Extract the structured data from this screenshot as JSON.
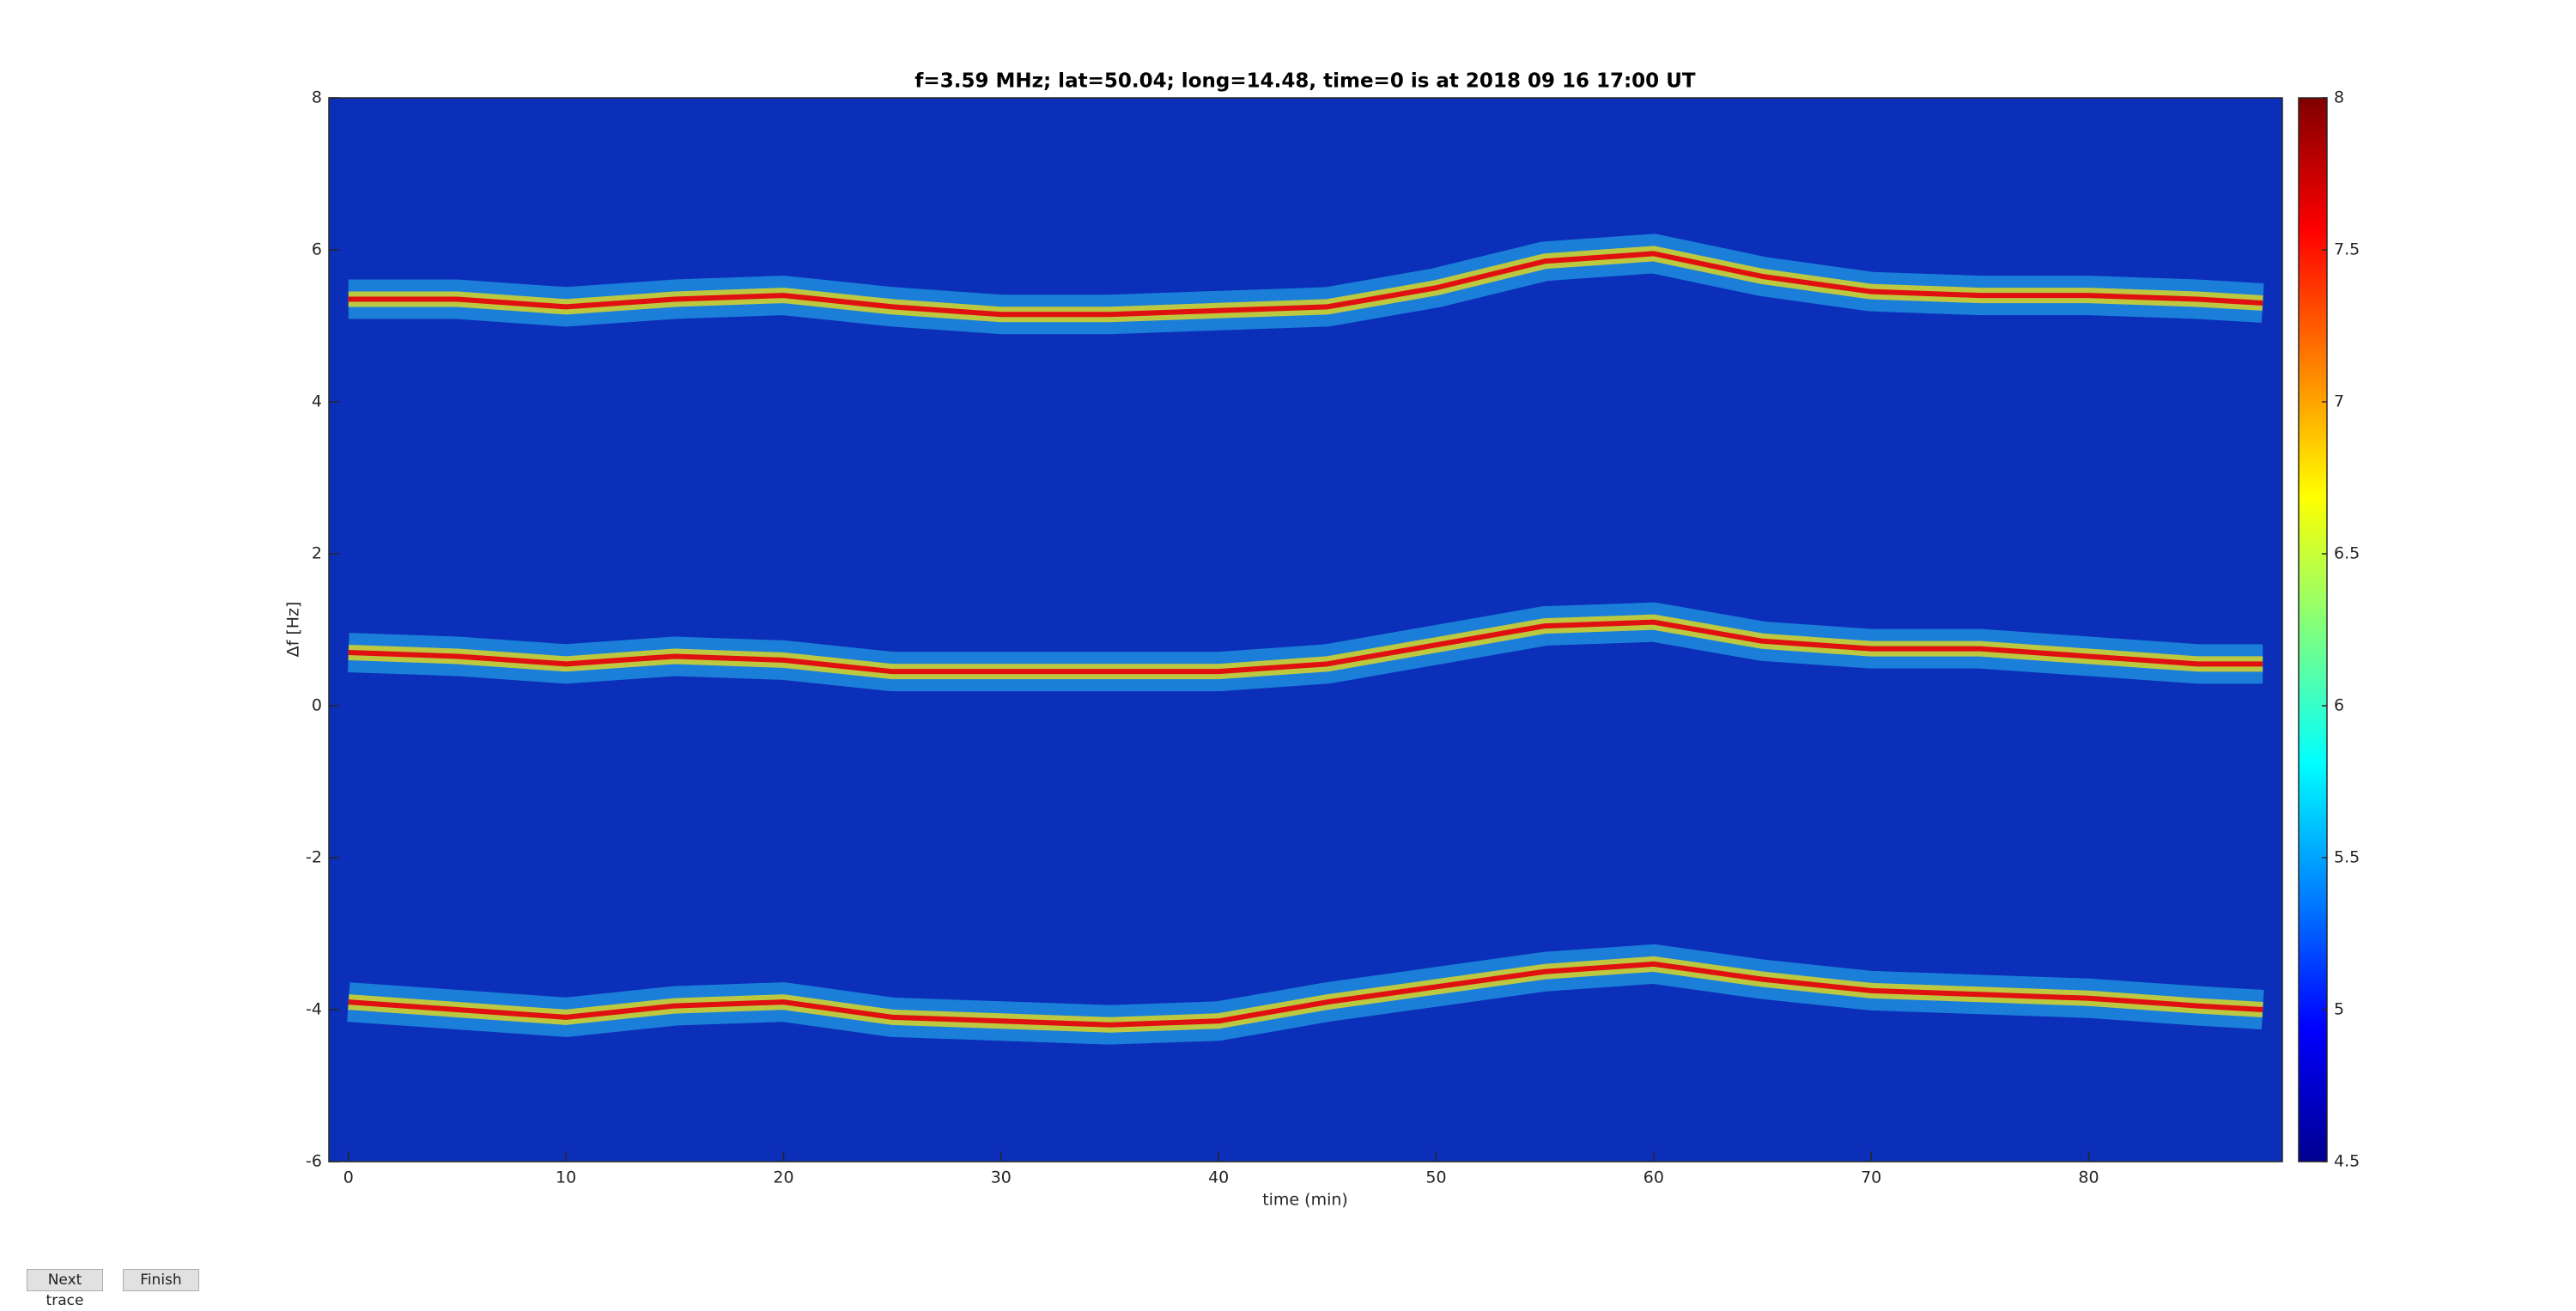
{
  "chart_data": {
    "type": "spectrogram",
    "title": "f=3.59 MHz;  lat=50.04; long=14.48, time=0 is at 2018 09 16 17:00 UT",
    "xlabel": "time (min)",
    "ylabel": "Δf [Hz]",
    "xlim": [
      -0.9,
      88.9
    ],
    "xticks": [
      0,
      10,
      20,
      30,
      40,
      50,
      60,
      70,
      80
    ],
    "ylim": [
      -6,
      8
    ],
    "yticks": [
      -6,
      -4,
      -2,
      0,
      2,
      4,
      6,
      8
    ],
    "background": "#0b2fb8",
    "colormap": "jet",
    "clim": [
      4.5,
      8
    ],
    "cticks": [
      4.5,
      5,
      5.5,
      6,
      6.5,
      7,
      7.5,
      8
    ],
    "x": [
      0,
      5,
      10,
      15,
      20,
      25,
      30,
      35,
      40,
      45,
      50,
      55,
      60,
      65,
      70,
      75,
      80,
      85,
      88
    ],
    "series": [
      {
        "color": "#e01010",
        "values": [
          5.35,
          5.35,
          5.25,
          5.35,
          5.4,
          5.25,
          5.15,
          5.15,
          5.2,
          5.25,
          5.5,
          5.85,
          5.95,
          5.65,
          5.45,
          5.4,
          5.4,
          5.35,
          5.3
        ]
      },
      {
        "color": "#e01010",
        "values": [
          0.7,
          0.65,
          0.55,
          0.65,
          0.6,
          0.45,
          0.45,
          0.45,
          0.45,
          0.55,
          0.8,
          1.05,
          1.1,
          0.85,
          0.75,
          0.75,
          0.65,
          0.55,
          0.55
        ]
      },
      {
        "color": "#e01010",
        "values": [
          -3.9,
          -4.0,
          -4.1,
          -3.95,
          -3.9,
          -4.1,
          -4.15,
          -4.2,
          -4.15,
          -3.9,
          -3.7,
          -3.5,
          -3.4,
          -3.6,
          -3.75,
          -3.8,
          -3.85,
          -3.95,
          -4.0
        ]
      }
    ]
  },
  "ui": {
    "buttons": [
      "Next trace",
      "Finish"
    ]
  }
}
